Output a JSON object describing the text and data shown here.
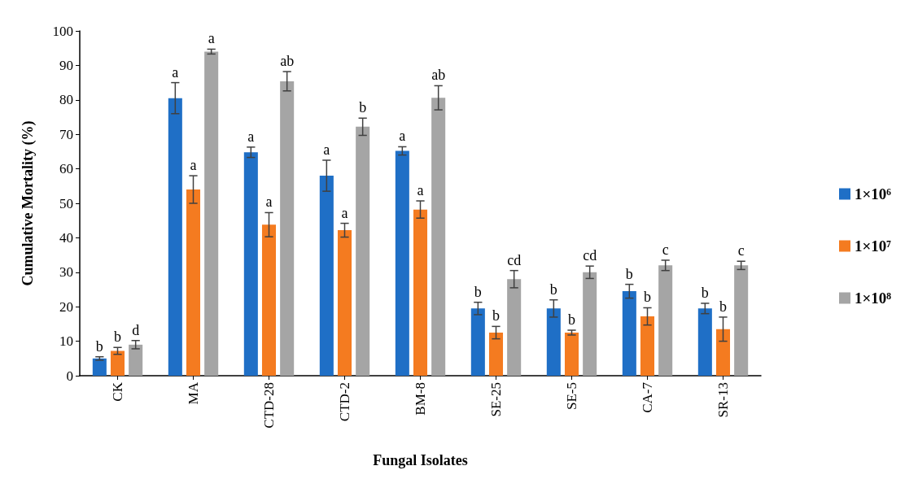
{
  "chart_data": {
    "type": "bar",
    "xlabel": "Fungal Isolates",
    "ylabel": "Cumulative Mortality (%)",
    "categories": [
      "CK",
      "MA",
      "CTD-28",
      "CTD-2",
      "BM-8",
      "SE-25",
      "SE-5",
      "CA-7",
      "SR-13"
    ],
    "series": [
      {
        "name": "1×10⁶",
        "color": "#1f6fc6",
        "values": [
          5,
          80.5,
          64.8,
          58,
          65.2,
          19.5,
          19.5,
          24.5,
          19.5
        ],
        "errors": [
          0.5,
          4.5,
          1.5,
          4.5,
          1.2,
          1.8,
          2.5,
          2,
          1.5
        ],
        "value_labels": [
          "b",
          "a",
          "a",
          "a",
          "a",
          "b",
          "b",
          "b",
          "b"
        ]
      },
      {
        "name": "1×10⁷",
        "color": "#f47b20",
        "values": [
          7.2,
          54,
          43.8,
          42.2,
          48.2,
          12.5,
          12.5,
          17.2,
          13.5
        ],
        "errors": [
          1,
          4,
          3.5,
          2,
          2.5,
          1.8,
          0.7,
          2.5,
          3.5
        ],
        "value_labels": [
          "b",
          "a",
          "a",
          "a",
          "a",
          "b",
          "b",
          "b",
          "b"
        ]
      },
      {
        "name": "1×10⁸",
        "color": "#a5a5a5",
        "values": [
          9,
          94,
          85.4,
          72.2,
          80.6,
          28,
          30,
          32,
          32
        ],
        "errors": [
          1.2,
          0.7,
          2.8,
          2.5,
          3.5,
          2.5,
          1.8,
          1.5,
          1.2
        ],
        "value_labels": [
          "d",
          "a",
          "ab",
          "b",
          "ab",
          "cd",
          "cd",
          "c",
          "c"
        ]
      }
    ],
    "ylim": [
      0,
      100
    ],
    "yticks": [
      0,
      10,
      20,
      30,
      40,
      50,
      60,
      70,
      80,
      90,
      100
    ],
    "grid": false,
    "legend": "right"
  }
}
